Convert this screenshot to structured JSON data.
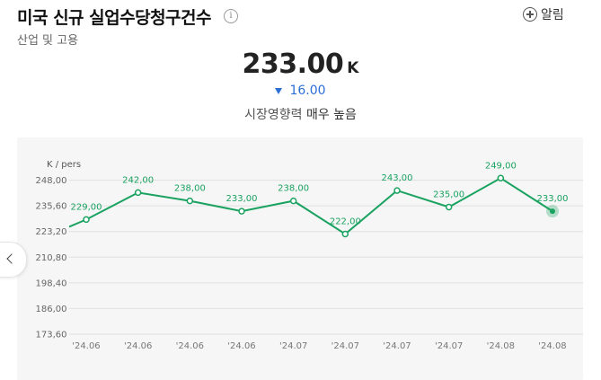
{
  "header": {
    "title": "미국 신규 실업수당청구건수",
    "subtitle": "산업 및 고용",
    "info_icon": "info-icon",
    "alert_label": "알림"
  },
  "summary": {
    "value": "233.00",
    "unit": "K",
    "change": "16.00",
    "change_direction": "down",
    "impact_label": "시장영향력",
    "impact_level": "매우 높음"
  },
  "colors": {
    "line": "#1aa260",
    "change": "#2b6fd6",
    "chart_bg": "#f6f6f6"
  },
  "chart_data": {
    "type": "line",
    "ylabel": "K / pers",
    "ylim": [
      173.6,
      260.4
    ],
    "yticks": [
      "248,00",
      "235,60",
      "223,20",
      "210,80",
      "198,40",
      "186,00",
      "173,60"
    ],
    "ytick_values": [
      248.0,
      235.6,
      223.2,
      210.8,
      198.4,
      186.0,
      173.6
    ],
    "categories": [
      "'24.06",
      "'24.06",
      "'24.06",
      "'24.06",
      "'24.07",
      "'24.07",
      "'24.07",
      "'24.07",
      "'24.08",
      "'24.08"
    ],
    "values": [
      229.0,
      242.0,
      238.0,
      233.0,
      238.0,
      222.0,
      243.0,
      235.0,
      249.0,
      233.0
    ],
    "value_labels": [
      "229,00",
      "242,00",
      "238,00",
      "233,00",
      "238,00",
      "222,00",
      "243,00",
      "235,00",
      "249,00",
      "233,00"
    ],
    "grid": true,
    "highlight_last": true
  }
}
